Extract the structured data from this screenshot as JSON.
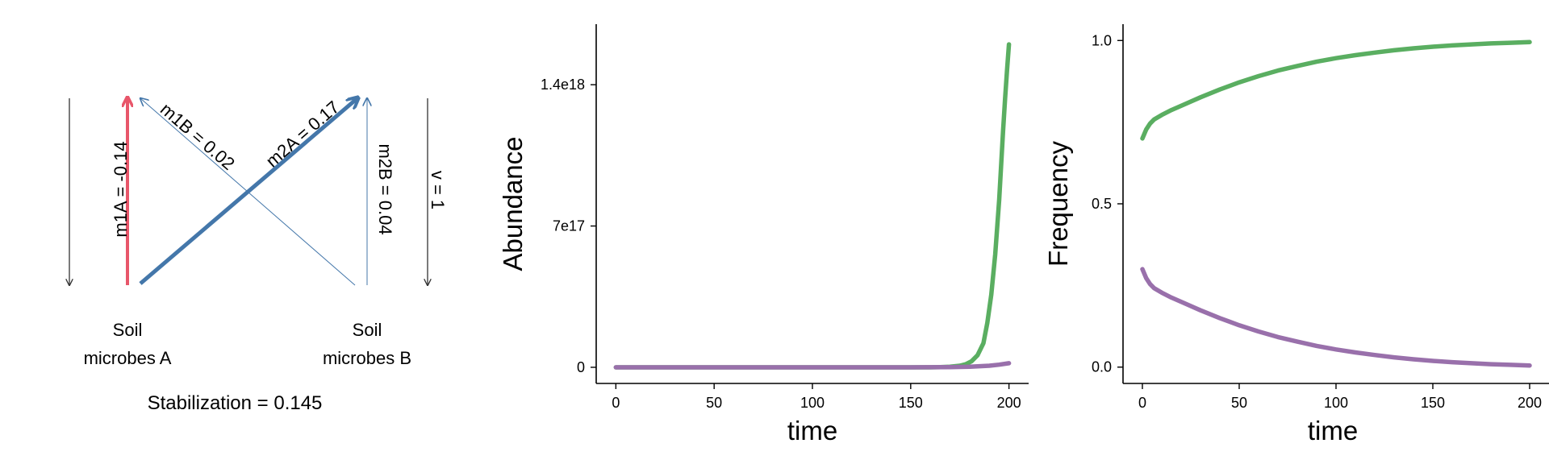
{
  "diagram": {
    "arrows": {
      "m1A": "m1A = -0.14",
      "m1B": "m1B = 0.02",
      "m2A": "m2A = 0.17",
      "m2B": "m2B = 0.04",
      "v": "v = 1"
    },
    "nodes": {
      "a_line1": "Soil",
      "a_line2": "microbes A",
      "b_line1": "Soil",
      "b_line2": "microbes B"
    },
    "stabilization": "Stabilization = 0.145",
    "colors": {
      "m1A": "#e8566a",
      "m2A": "#4477aa",
      "m1B": "#4477aa",
      "m2B": "#4477aa",
      "v": "#333333"
    }
  },
  "chart_data": [
    {
      "type": "line",
      "xlabel": "time",
      "ylabel": "Abundance",
      "xlim": [
        -10,
        210
      ],
      "ylim": [
        -8e+16,
        1.7e+18
      ],
      "xticks": [
        0,
        50,
        100,
        150,
        200
      ],
      "xtick_labels": [
        "0",
        "50",
        "100",
        "150",
        "200"
      ],
      "yticks": [
        0,
        7e+17,
        1.4e+18
      ],
      "ytick_labels": [
        "0",
        "7e17",
        "1.4e18"
      ],
      "grid": false,
      "series": [
        {
          "color": "#5aae61",
          "x": [
            0,
            20,
            40,
            60,
            80,
            100,
            120,
            140,
            160,
            165,
            170,
            175,
            178,
            181,
            184,
            187,
            189,
            191,
            193,
            195,
            196,
            197,
            198,
            199,
            200
          ],
          "y": [
            0,
            0,
            0,
            0,
            0,
            0,
            0,
            0,
            0,
            1000000000000000.0,
            3000000000000000.0,
            8000000000000000.0,
            1.5e+16,
            3e+16,
            6e+16,
            1.2e+17,
            2.2e+17,
            3.6e+17,
            5.6e+17,
            8.3e+17,
            1e+18,
            1.17e+18,
            1.33e+18,
            1.47e+18,
            1.6e+18
          ]
        },
        {
          "color": "#9970ab",
          "x": [
            0,
            50,
            100,
            150,
            170,
            180,
            190,
            195,
            200
          ],
          "y": [
            0,
            0,
            0,
            0,
            1000000000000000.0,
            3000000000000000.0,
            8000000000000000.0,
            1.3e+16,
            2e+16
          ]
        }
      ]
    },
    {
      "type": "line",
      "xlabel": "time",
      "ylabel": "Frequency",
      "xlim": [
        -10,
        210
      ],
      "ylim": [
        -0.05,
        1.05
      ],
      "xticks": [
        0,
        50,
        100,
        150,
        200
      ],
      "xtick_labels": [
        "0",
        "50",
        "100",
        "150",
        "200"
      ],
      "yticks": [
        0,
        0.5,
        1
      ],
      "ytick_labels": [
        "0.0",
        "0.5",
        "1.0"
      ],
      "grid": false,
      "series": [
        {
          "color": "#5aae61",
          "x": [
            0,
            2,
            4,
            6,
            10,
            15,
            20,
            30,
            40,
            50,
            60,
            70,
            80,
            90,
            100,
            110,
            120,
            130,
            140,
            150,
            160,
            170,
            180,
            190,
            200
          ],
          "y": [
            0.7,
            0.728,
            0.746,
            0.758,
            0.772,
            0.787,
            0.8,
            0.826,
            0.85,
            0.872,
            0.891,
            0.908,
            0.922,
            0.935,
            0.946,
            0.955,
            0.963,
            0.97,
            0.976,
            0.981,
            0.985,
            0.988,
            0.991,
            0.993,
            0.995
          ]
        },
        {
          "color": "#9970ab",
          "x": [
            0,
            2,
            4,
            6,
            10,
            15,
            20,
            30,
            40,
            50,
            60,
            70,
            80,
            90,
            100,
            110,
            120,
            130,
            140,
            150,
            160,
            170,
            180,
            190,
            200
          ],
          "y": [
            0.3,
            0.272,
            0.254,
            0.242,
            0.228,
            0.213,
            0.2,
            0.174,
            0.15,
            0.128,
            0.109,
            0.092,
            0.078,
            0.065,
            0.054,
            0.045,
            0.037,
            0.03,
            0.024,
            0.019,
            0.015,
            0.012,
            0.009,
            0.007,
            0.005
          ]
        }
      ]
    }
  ]
}
